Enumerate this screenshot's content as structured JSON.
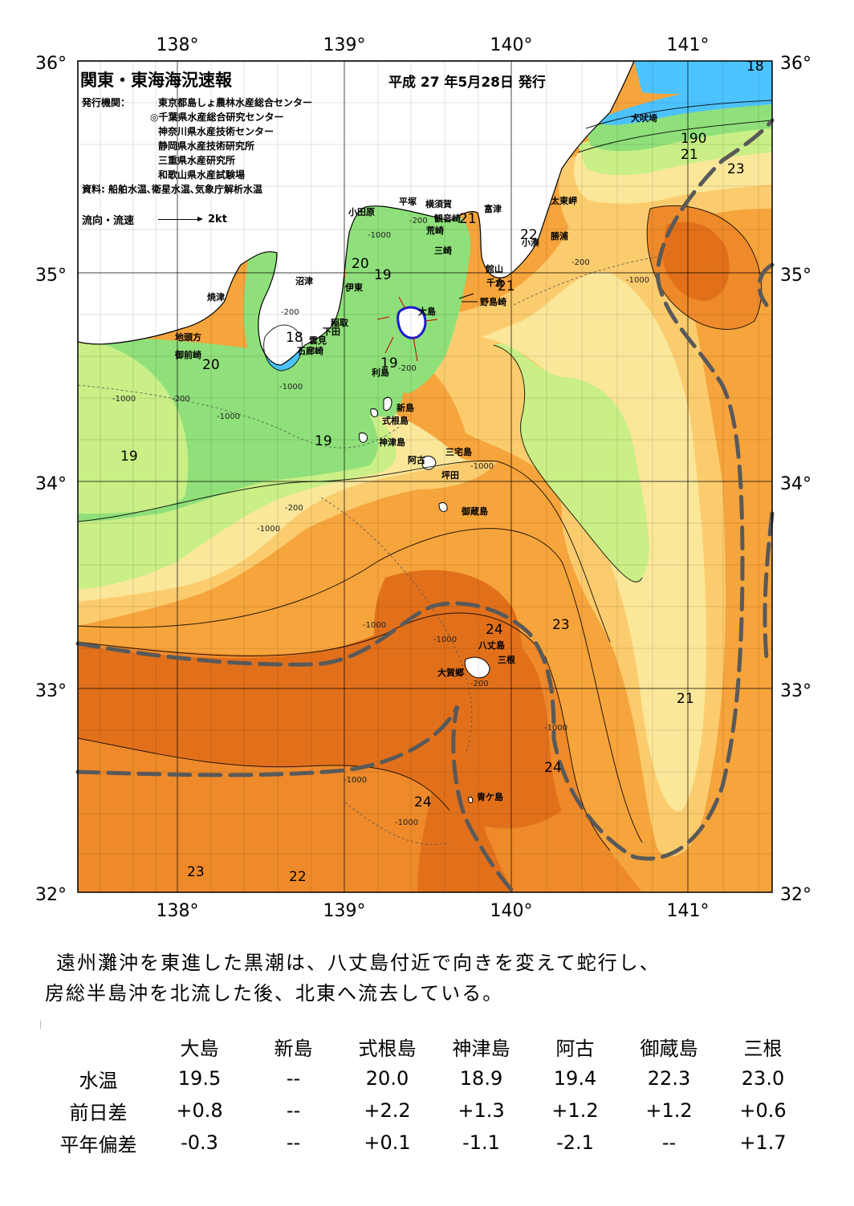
{
  "title": "関東・東海海況速報",
  "issue_date": "平成 27 年5月28日 発行",
  "publisher_label": "発行機関：",
  "publishers": [
    "東京都島しょ農林水産総合センター",
    "◎千葉県水産総合研究センター",
    "神奈川県水産技術センター",
    "静岡県水産技術研究所",
    "三重県水産研究所",
    "和歌山県水産試験場"
  ],
  "source": "資料: 船舶水温､衛星水温､気象庁解析水温",
  "current_legend": {
    "label": "流向・流速",
    "unit": "2kt"
  },
  "axes": {
    "lon_labels": [
      "138°",
      "139°",
      "140°",
      "141°"
    ],
    "lat_labels": [
      "36°",
      "35°",
      "34°",
      "33°",
      "32°"
    ]
  },
  "isotherm_labels": [
    "18",
    "19",
    "20",
    "21",
    "22",
    "23",
    "24",
    "190"
  ],
  "depth_labels": [
    "-200",
    "-1000"
  ],
  "place_names": {
    "inubosaki": "犬吠埼",
    "taitomisaki": "太東岬",
    "katsuura": "勝浦",
    "kominato": "小湊",
    "futtsu": "富津",
    "yokosuka": "横須賀",
    "kannonzaki": "観音崎",
    "arasaki": "荒崎",
    "misaki": "三崎",
    "hiratsuka": "平塚",
    "odawara": "小田原",
    "tateyama": "館山",
    "chikura": "千倉",
    "nojimazaki": "野島崎",
    "numazu": "沼津",
    "ito": "伊東",
    "inatori": "稲取",
    "shimoda": "下田",
    "kumomi": "雲見",
    "irozaki": "石廊崎",
    "yaizu": "焼津",
    "jitokata": "地頭方",
    "omaezaki": "御前崎",
    "oshima": "大島",
    "toshima": "利島",
    "niijima": "新島",
    "shikinejima": "式根島",
    "kozushima": "神津島",
    "miyakejima": "三宅島",
    "ako": "阿古",
    "tsubota": "坪田",
    "mikurajima": "御蔵島",
    "hachijojima": "八丈島",
    "mitsune": "三根",
    "okago": "大賀郷",
    "aogashima": "青ケ島"
  },
  "comment_lines": [
    "遠州灘沖を東進した黒潮は、八丈島付近で向きを変えて蛇行し、",
    "房総半島沖を北流した後、北東へ流去している。"
  ],
  "table": {
    "columns": [
      "大島",
      "新島",
      "式根島",
      "神津島",
      "阿古",
      "御蔵島",
      "三根"
    ],
    "rows": [
      {
        "label": "水温",
        "values": [
          "19.5",
          "--",
          "20.0",
          "18.9",
          "19.4",
          "22.3",
          "23.0"
        ]
      },
      {
        "label": "前日差",
        "values": [
          "+0.8",
          "--",
          "+2.2",
          "+1.3",
          "+1.2",
          "+1.2",
          "+0.6"
        ]
      },
      {
        "label": "平年偏差",
        "values": [
          "-0.3",
          "--",
          "+0.1",
          "-1.1",
          "-2.1",
          "--",
          "+1.7"
        ]
      }
    ]
  },
  "colors": {
    "t18": "#4cc3ff",
    "t19": "#8fe07a",
    "t20": "#c9ef86",
    "t21": "#fbe79a",
    "t22": "#fbcc6e",
    "t23": "#f6a43c",
    "t24": "#ee8a2a",
    "t25": "#e2701b",
    "land": "#ffffff",
    "kuroshio_axis": "#595959",
    "grid": "#000000"
  }
}
